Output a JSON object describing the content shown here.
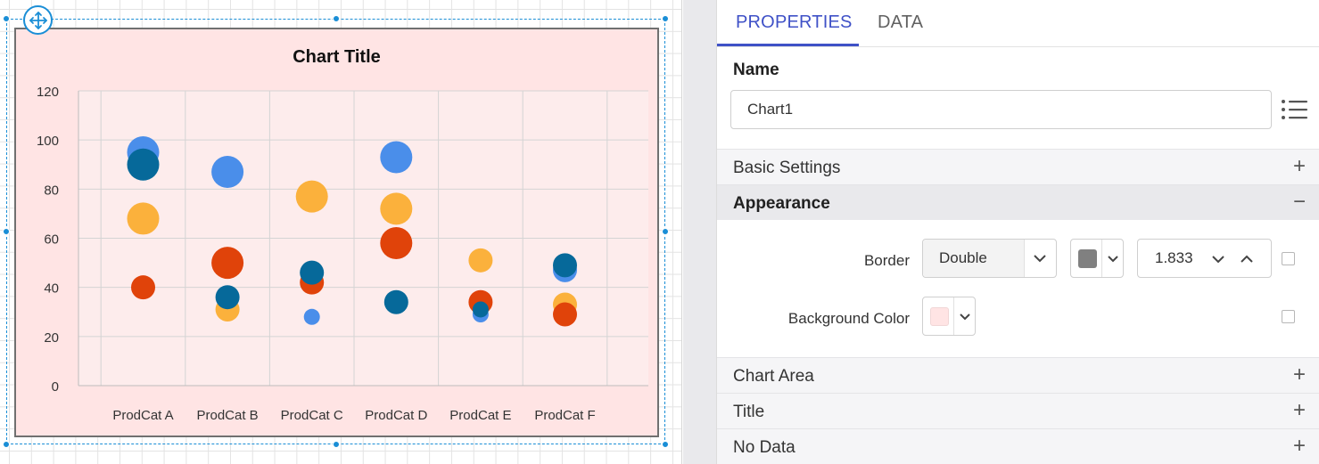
{
  "chart_data": {
    "type": "scatter",
    "title": "Chart Title",
    "categories": [
      "ProdCat A",
      "ProdCat B",
      "ProdCat C",
      "ProdCat D",
      "ProdCat E",
      "ProdCat F"
    ],
    "ylim": [
      0,
      120
    ],
    "yticks": [
      "0",
      "20",
      "40",
      "60",
      "80",
      "100",
      "120"
    ],
    "grid": true,
    "series": [
      {
        "color": "#4a8eea",
        "values": [
          95,
          87,
          28,
          93,
          29,
          47
        ],
        "sizes": [
          3,
          3,
          1,
          3,
          1,
          2
        ]
      },
      {
        "color": "#fbb13c",
        "values": [
          68,
          31,
          77,
          72,
          51,
          33
        ],
        "sizes": [
          3,
          2,
          3,
          3,
          2,
          2
        ]
      },
      {
        "color": "#e0430a",
        "values": [
          40,
          50,
          42,
          58,
          34,
          29
        ],
        "sizes": [
          2,
          3,
          2,
          3,
          2,
          2
        ]
      },
      {
        "color": "#06699a",
        "values": [
          90,
          36,
          46,
          34,
          31,
          49
        ],
        "sizes": [
          3,
          2,
          2,
          2,
          1,
          2
        ]
      }
    ]
  },
  "panel": {
    "tabs": {
      "properties": "PROPERTIES",
      "data": "DATA"
    },
    "name_label": "Name",
    "name_value": "Chart1",
    "sections": {
      "basic": "Basic Settings",
      "appearance": "Appearance",
      "chart_area": "Chart Area",
      "title": "Title",
      "no_data": "No Data"
    },
    "appearance": {
      "border_label": "Border",
      "border_style": "Double",
      "border_color": "#808080",
      "border_width": "1.833",
      "background_label": "Background Color",
      "background_color": "#ffe4e4"
    },
    "toggles": {
      "expand": "+",
      "collapse": "−"
    }
  },
  "colors": {
    "accent": "#3f51c7",
    "selection": "#1a8ed6",
    "chart_background": "#ffe4e4"
  }
}
